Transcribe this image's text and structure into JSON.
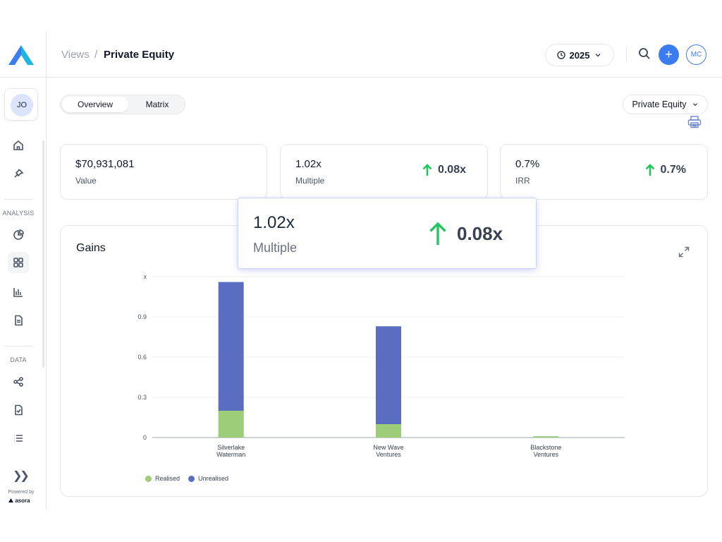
{
  "brand": {
    "accent": "#3b7df0",
    "logo_colors": [
      "#3b7df0",
      "#1fb6e0"
    ]
  },
  "sidebar": {
    "user_initials": "JO",
    "sections": {
      "analysis": "ANALYSIS",
      "data": "DATA"
    },
    "icons": [
      "home-icon",
      "pin-icon",
      "pie-chart-icon",
      "grid-icon",
      "bar-chart-icon",
      "document-icon",
      "share-icon",
      "checked-file-icon",
      "list-icon"
    ],
    "expand_glyph": "❯❯",
    "powered_by": "Powered by",
    "powered_brand": "asora"
  },
  "header": {
    "breadcrumb_root": "Views",
    "breadcrumb_sep": "/",
    "breadcrumb_current": "Private Equity",
    "year": "2025",
    "user_initials": "MC",
    "add_glyph": "+"
  },
  "tabs": [
    {
      "label": "Overview",
      "active": true
    },
    {
      "label": "Matrix",
      "active": false
    }
  ],
  "filter": {
    "label": "Private Equity"
  },
  "kpis": [
    {
      "value": "$70,931,081",
      "label": "Value",
      "delta": ""
    },
    {
      "value": "1.02x",
      "label": "Multiple",
      "delta": "0.08x"
    },
    {
      "value": "0.7%",
      "label": "IRR",
      "delta": "0.7%"
    }
  ],
  "zoom": {
    "value": "1.02x",
    "label": "Multiple",
    "delta": "0.08x"
  },
  "chart_data": {
    "type": "bar",
    "stacked": true,
    "title": "Gains",
    "ylabel": "x",
    "ylim": [
      0,
      1.2
    ],
    "yticks": [
      0,
      0.3,
      0.6,
      0.9
    ],
    "top_tick_label": "x",
    "categories": [
      [
        "Silverlake",
        "Waterman"
      ],
      [
        "New Wave",
        "Ventures"
      ],
      [
        "Blackstone",
        "Ventures"
      ]
    ],
    "series": [
      {
        "name": "Realised",
        "color": "#9bcd79",
        "values": [
          0.2,
          0.1,
          0.01
        ]
      },
      {
        "name": "Unrealised",
        "color": "#5b6dc0",
        "values": [
          0.96,
          0.73,
          0
        ]
      }
    ],
    "grid": true,
    "legend": "bottom-left"
  }
}
